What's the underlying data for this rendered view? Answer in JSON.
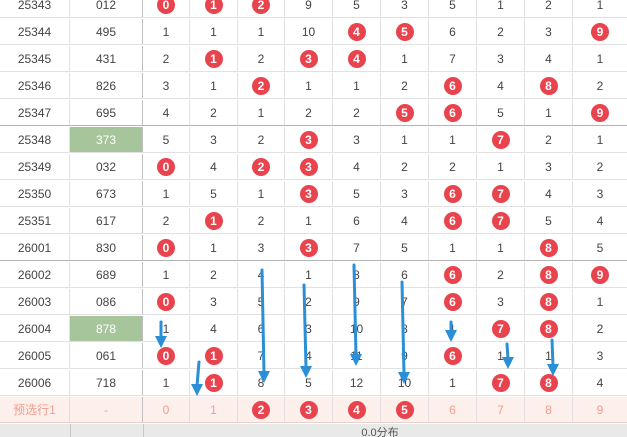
{
  "rows": [
    {
      "issue": "25343",
      "num": "012",
      "cells": [
        "0",
        "1",
        "2",
        "9",
        "5",
        "3",
        "5",
        "1",
        "2",
        "1"
      ],
      "balls": [
        0,
        1,
        2
      ]
    },
    {
      "issue": "25344",
      "num": "495",
      "cells": [
        "1",
        "1",
        "1",
        "10",
        "4",
        "5",
        "6",
        "2",
        "3",
        "9"
      ],
      "balls": [
        4,
        5,
        9
      ]
    },
    {
      "issue": "25345",
      "num": "431",
      "cells": [
        "2",
        "1",
        "2",
        "3",
        "4",
        "1",
        "7",
        "3",
        "4",
        "1"
      ],
      "balls": [
        1,
        3,
        4
      ]
    },
    {
      "issue": "25346",
      "num": "826",
      "cells": [
        "3",
        "1",
        "2",
        "1",
        "1",
        "2",
        "6",
        "4",
        "8",
        "2"
      ],
      "balls": [
        2,
        6,
        8
      ]
    },
    {
      "issue": "25347",
      "num": "695",
      "cells": [
        "4",
        "2",
        "1",
        "2",
        "2",
        "5",
        "6",
        "5",
        "1",
        "9"
      ],
      "balls": [
        5,
        6,
        9
      ]
    },
    {
      "issue": "25348",
      "num": "373",
      "cells": [
        "5",
        "3",
        "2",
        "3",
        "3",
        "1",
        "1",
        "7",
        "2",
        "1"
      ],
      "balls": [
        3,
        7
      ],
      "highlight": true
    },
    {
      "issue": "25349",
      "num": "032",
      "cells": [
        "0",
        "4",
        "2",
        "3",
        "4",
        "2",
        "2",
        "1",
        "3",
        "2"
      ],
      "balls": [
        0,
        2,
        3
      ]
    },
    {
      "issue": "25350",
      "num": "673",
      "cells": [
        "1",
        "5",
        "1",
        "3",
        "5",
        "3",
        "6",
        "7",
        "4",
        "3"
      ],
      "balls": [
        3,
        6,
        7
      ]
    },
    {
      "issue": "25351",
      "num": "617",
      "cells": [
        "2",
        "1",
        "2",
        "1",
        "6",
        "4",
        "6",
        "7",
        "5",
        "4"
      ],
      "balls": [
        1,
        6,
        7
      ]
    },
    {
      "issue": "26001",
      "num": "830",
      "cells": [
        "0",
        "1",
        "3",
        "3",
        "7",
        "5",
        "1",
        "1",
        "8",
        "5"
      ],
      "balls": [
        0,
        3,
        8
      ]
    },
    {
      "issue": "26002",
      "num": "689",
      "cells": [
        "1",
        "2",
        "4",
        "1",
        "8",
        "6",
        "6",
        "2",
        "8",
        "9"
      ],
      "balls": [
        6,
        8,
        9
      ]
    },
    {
      "issue": "26003",
      "num": "086",
      "cells": [
        "0",
        "3",
        "5",
        "2",
        "9",
        "7",
        "6",
        "3",
        "8",
        "1"
      ],
      "balls": [
        0,
        6,
        8
      ]
    },
    {
      "issue": "26004",
      "num": "878",
      "cells": [
        "1",
        "4",
        "6",
        "3",
        "10",
        "8",
        "1",
        "7",
        "8",
        "2"
      ],
      "balls": [
        7,
        8
      ],
      "highlight": true
    },
    {
      "issue": "26005",
      "num": "061",
      "cells": [
        "0",
        "1",
        "7",
        "4",
        "11",
        "9",
        "6",
        "1",
        "1",
        "3"
      ],
      "balls": [
        0,
        1,
        6
      ]
    },
    {
      "issue": "26006",
      "num": "718",
      "cells": [
        "1",
        "1",
        "8",
        "5",
        "12",
        "10",
        "1",
        "7",
        "8",
        "4"
      ],
      "balls": [
        1,
        7,
        8
      ]
    }
  ],
  "preselect": {
    "label": "预选行1",
    "num": "-",
    "cells": [
      "0",
      "1",
      "2",
      "3",
      "4",
      "5",
      "6",
      "7",
      "8",
      "9"
    ],
    "balls": [
      2,
      3,
      4,
      5
    ]
  },
  "footer": {
    "text": "0.0分布"
  },
  "colors": {
    "ball": "#e9444e",
    "highlight": "#a6c59a",
    "arrow": "#2b8fd8",
    "preselect_text": "#f29c8c"
  }
}
